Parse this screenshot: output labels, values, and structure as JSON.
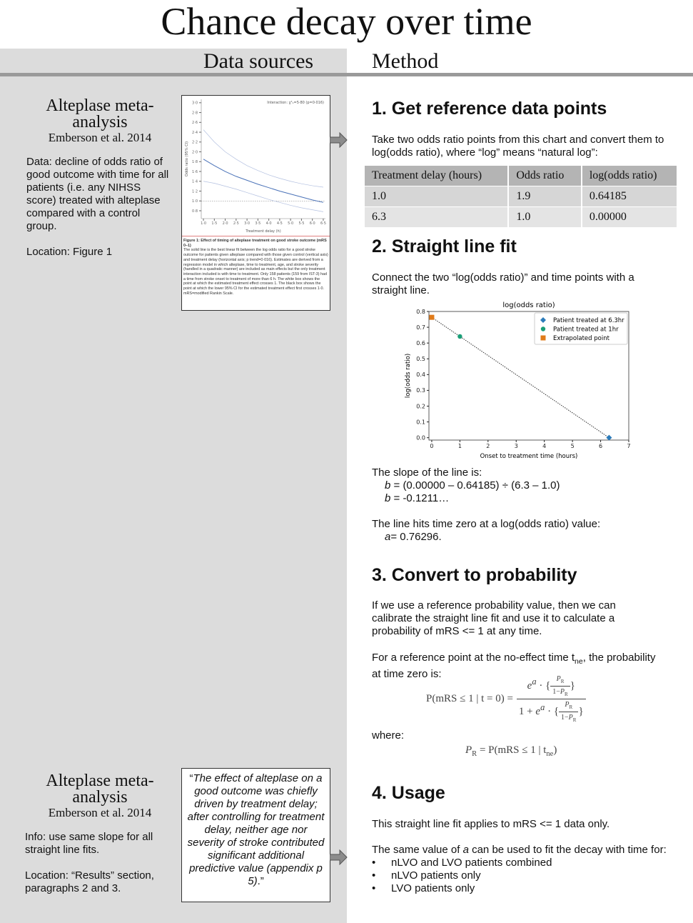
{
  "title": "Chance decay over time",
  "columns": {
    "left": "Data sources",
    "right": "Method"
  },
  "sources": [
    {
      "heading": "Alteplase meta-analysis",
      "citation": "Emberson et al. 2014",
      "paragraphs": [
        "Data: decline of odds ratio of good outcome with time for all patients (i.e. any NIHSS score) treated with alteplase compared with a control group.",
        "Location: Figure 1"
      ]
    },
    {
      "heading": "Alteplase meta-analysis",
      "citation": "Emberson et al. 2014",
      "paragraphs": [
        "Info: use same slope for all straight line fits.",
        "Location: “Results” section, paragraphs 2 and 3."
      ]
    }
  ],
  "figure_caption": {
    "title": "Figure 1: Effect of timing of alteplase treatment on good stroke outcome (mRS 0–1)",
    "body": "The solid line is the best linear fit between the log odds ratio for a good stroke outcome for patients given alteplase compared with those given control (vertical axis) and treatment delay (horizontal axis; p trend=0·016). Estimates are derived from a regression model in which alteplase, time to treatment, age, and stroke severity (handled in a quadratic manner) are included as main effects but the only treatment interaction included is with time to treatment. Only 158 patients (159 from IST-3) had a time from stroke onset to treatment of more than 6 h. The white box shows the point at which the estimated treatment effect crosses 1. The black box shows the point at which the lower 95% CI for the estimated treatment effect first crosses 1·0. mRS=modified Rankin Scale."
  },
  "quote": {
    "open": "“",
    "text": "The effect of alteplase on a good outcome was chiefly driven by treatment delay; after controlling for treatment delay, neither age nor severity of stroke contributed significant additional predictive value (appendix p 5)",
    "close": ".”"
  },
  "method": {
    "reference": {
      "heading": "1. Get reference data points",
      "text": "Take two odds ratio points from this chart and convert them to log(odds ratio), where “log” means “natural log”:",
      "table": {
        "header": [
          "Treatment delay (hours)",
          "Odds ratio",
          "log(odds ratio)"
        ],
        "rows": [
          [
            "1.0",
            "1.9",
            "0.64185"
          ],
          [
            "6.3",
            "1.0",
            "0.00000"
          ]
        ]
      }
    },
    "fit": {
      "heading": "2. Straight line fit",
      "text": "Connect the two “log(odds ratio)” and time points with a straight line.",
      "slope_intro": "The slope of the line is:",
      "slope_lines": [
        {
          "var": "b",
          "expr": " = (0.00000 – 0.64185) ÷ (6.3 – 1.0)"
        },
        {
          "var": "b",
          "expr": " = -0.1211…"
        }
      ],
      "intercept_intro": "The line hits time zero at a log(odds ratio) value:",
      "intercept": {
        "var": "a",
        "expr": "= 0.76296."
      }
    },
    "convert": {
      "heading": "3. Convert to probability",
      "text": "If we use a reference probability value, then we can calibrate the straight line fit and use it to calculate a probability of mRS <= 1 at any time.",
      "ref_text_a": "For a reference point at the no-effect time t",
      "ref_sub": "ne",
      "ref_text_b": ", the probability at time zero is:",
      "formula": {
        "lhs": "P(mRS ≤ 1 | t = 0) =",
        "e": "e",
        "a": "a",
        "dot": "·",
        "lbrace": "{",
        "rbrace": "}",
        "P": "P",
        "R": "R",
        "one_minus": "1−",
        "one_plus": "1 + "
      },
      "where": "where:",
      "where_formula": {
        "P": "P",
        "R": "R",
        "mid": " = P(mRS ≤ 1 | t",
        "sub": "ne",
        "end": ")"
      }
    },
    "usage": {
      "heading": "4. Usage",
      "text": "This straight line fit applies to mRS <= 1 data only.",
      "same_a": "The same value of ",
      "same_var": "a",
      "same_b": " can be used to fit the decay with time for:",
      "bullet": "•",
      "bullets": [
        "nLVO and LVO patients combined",
        "nLVO patients only",
        "LVO patients only"
      ]
    }
  },
  "chart_data": [
    {
      "type": "line",
      "annotation": "Interaction: χ²₁=5·80 (p=0·016)",
      "xlabel": "Treatment delay (h)",
      "ylabel": "Odds ratio (95% CI)",
      "x": [
        1,
        1.5,
        2,
        2.5,
        3,
        3.5,
        4,
        4.5,
        5,
        5.5,
        6,
        6.5
      ],
      "series": [
        {
          "color": "#4a72b8",
          "values": [
            1.85,
            1.72,
            1.6,
            1.5,
            1.42,
            1.34,
            1.27,
            1.2,
            1.14,
            1.08,
            1.02,
            0.97
          ]
        },
        {
          "color": "#b3c0e0",
          "values": [
            2.45,
            2.2,
            2.0,
            1.85,
            1.72,
            1.62,
            1.53,
            1.46,
            1.4,
            1.35,
            1.31,
            1.28
          ]
        },
        {
          "color": "#b3c0e0",
          "values": [
            1.4,
            1.36,
            1.3,
            1.24,
            1.17,
            1.1,
            1.03,
            0.97,
            0.91,
            0.86,
            0.82,
            0.78
          ]
        }
      ],
      "reference_line": 1,
      "xlim": [
        0.9,
        6.6
      ],
      "ylim": [
        0.64,
        3.07
      ],
      "xticks": [
        {
          "value": 1,
          "label": "1·0"
        },
        {
          "value": 1.5,
          "label": "1·5"
        },
        {
          "value": 2,
          "label": "2·0"
        },
        {
          "value": 2.5,
          "label": "2·5"
        },
        {
          "value": 3,
          "label": "3·0"
        },
        {
          "value": 3.5,
          "label": "3·5"
        },
        {
          "value": 4,
          "label": "4·0"
        },
        {
          "value": 4.5,
          "label": "4·5"
        },
        {
          "value": 5,
          "label": "5·0"
        },
        {
          "value": 5.5,
          "label": "5·5"
        },
        {
          "value": 6,
          "label": "6·0"
        },
        {
          "value": 6.5,
          "label": "6·5"
        }
      ],
      "yticks": [
        {
          "value": 0.8,
          "label": "0·8"
        },
        {
          "value": 1,
          "label": "1·0"
        },
        {
          "value": 1.2,
          "label": "1·2"
        },
        {
          "value": 1.4,
          "label": "1·4"
        },
        {
          "value": 1.6,
          "label": "1·6"
        },
        {
          "value": 1.8,
          "label": "1·8"
        },
        {
          "value": 2,
          "label": "2·0"
        },
        {
          "value": 2.2,
          "label": "2·2"
        },
        {
          "value": 2.4,
          "label": "2·4"
        },
        {
          "value": 2.6,
          "label": "2·6"
        },
        {
          "value": 2.8,
          "label": "2·8"
        },
        {
          "value": 3,
          "label": "3·0"
        }
      ]
    },
    {
      "type": "scatter",
      "title": "log(odds ratio)",
      "xlabel": "Onset to treatment time (hours)",
      "ylabel": "log(odds ratio)",
      "xlim": [
        -0.1,
        7
      ],
      "ylim": [
        -0.015,
        0.8
      ],
      "xticks": [
        0,
        1,
        2,
        3,
        4,
        5,
        6,
        7
      ],
      "yticks": [
        {
          "value": 0,
          "label": "0.0"
        },
        0.1,
        0.2,
        0.3,
        0.4,
        0.5,
        0.6,
        0.7,
        0.8
      ],
      "legend": "upper right",
      "series": [
        {
          "name": "Patient treated at 6.3hr",
          "color": "#2b7bba",
          "marker": "diamond",
          "x": [
            6.3
          ],
          "values": [
            0.0
          ]
        },
        {
          "name": "Patient treated at 1hr",
          "color": "#1a9e77",
          "marker": "circle",
          "x": [
            1.0
          ],
          "values": [
            0.64185
          ]
        },
        {
          "name": "Extrapolated point",
          "color": "#e07b1a",
          "marker": "square",
          "x": [
            0
          ],
          "values": [
            0.76296
          ]
        }
      ]
    }
  ]
}
